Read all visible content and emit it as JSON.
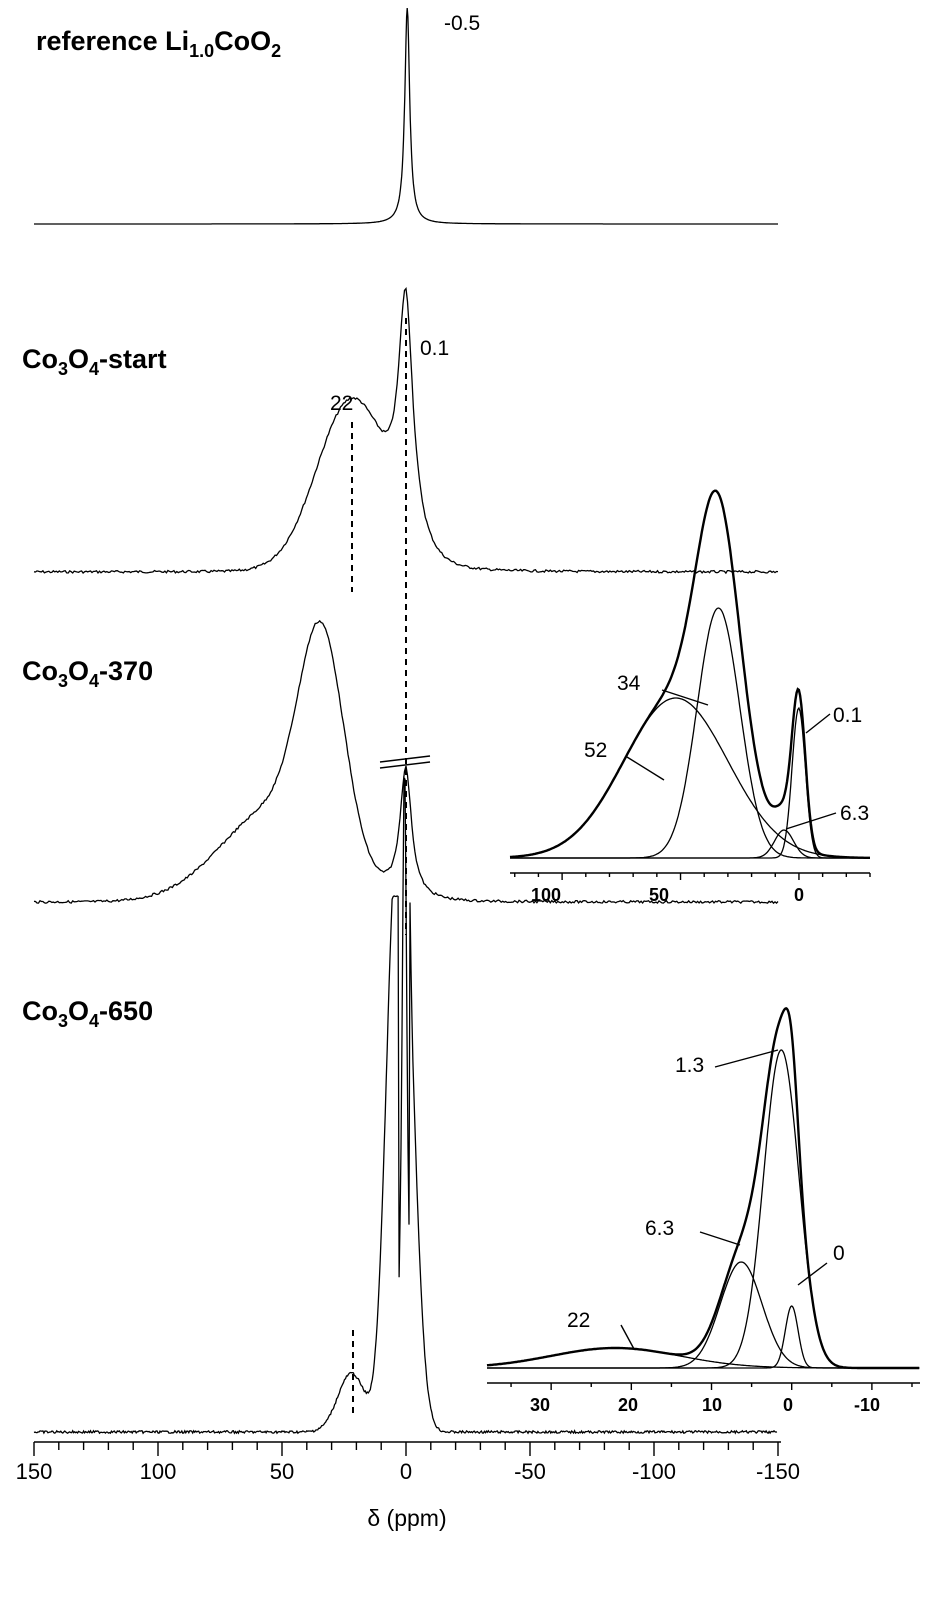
{
  "chart_data": {
    "type": "line",
    "xlabel": "δ (ppm)",
    "xlim": [
      150,
      -150
    ],
    "x_ticks": [
      "150",
      "100",
      "50",
      "0",
      "-50",
      "-100",
      "-150"
    ],
    "x_tick_values": [
      150,
      100,
      50,
      0,
      -50,
      -100,
      -150
    ],
    "series": [
      {
        "name": "reference Li1.0CoO2",
        "label_main": "reference Li",
        "label_sub": "1.0",
        "label_tail": "CoO",
        "label_sub2": "2",
        "peaks": [
          {
            "position": -0.5,
            "width": 1.2,
            "height": 1.0
          }
        ],
        "annotations": [
          "-0.5"
        ]
      },
      {
        "name": "Co3O4-start",
        "label_a": "Co",
        "label_s1": "3",
        "label_b": "O",
        "label_s2": "4",
        "label_c": "-start",
        "peaks": [
          {
            "position": 0.1,
            "width": 3.5,
            "height": 0.78
          },
          {
            "position": 22,
            "width": 14,
            "height": 0.56
          }
        ],
        "annotations": [
          "22",
          "0.1"
        ]
      },
      {
        "name": "Co3O4-370",
        "label_a": "Co",
        "label_s1": "3",
        "label_b": "O",
        "label_s2": "4",
        "label_c": "-370",
        "peaks": [
          {
            "position": 0.1,
            "width": 2.8,
            "height": 0.38
          },
          {
            "position": 34,
            "width": 9,
            "height": 0.62
          },
          {
            "position": 52,
            "width": 22,
            "height": 0.28
          }
        ],
        "annotations": []
      },
      {
        "name": "Co3O4-650",
        "label_a": "Co",
        "label_s1": "3",
        "label_b": "O",
        "label_s2": "4",
        "label_c": "-650",
        "peaks": [
          {
            "position": 1.3,
            "width": 4.5,
            "height": 2.6
          },
          {
            "position": 6.3,
            "width": 3.5,
            "height": 0.9
          },
          {
            "position": 0,
            "width": 1.0,
            "height": 1.2
          },
          {
            "position": 22,
            "width": 5.5,
            "height": 0.28
          }
        ],
        "annotations": []
      }
    ],
    "insets": [
      {
        "parent": "Co3O4-370",
        "x_ticks": [
          "100",
          "50",
          "0"
        ],
        "x_tick_values": [
          100,
          50,
          0
        ],
        "xlim": [
          122,
          -30
        ],
        "components": [
          {
            "position": 34,
            "width": 9
          },
          {
            "position": 52,
            "width": 22
          },
          {
            "position": 0.1,
            "width": 2.8
          },
          {
            "position": 6.3,
            "width": 4
          }
        ],
        "annotations": [
          "34",
          "52",
          "0.1",
          "6.3"
        ]
      },
      {
        "parent": "Co3O4-650",
        "x_ticks": [
          "30",
          "20",
          "10",
          "0",
          "-10"
        ],
        "x_tick_values": [
          30,
          20,
          10,
          0,
          -10
        ],
        "xlim": [
          38,
          -16
        ],
        "components": [
          {
            "position": 1.3,
            "width": 2.2
          },
          {
            "position": 6.3,
            "width": 2.6
          },
          {
            "position": 0,
            "width": 0.8
          },
          {
            "position": 22,
            "width": 8
          }
        ],
        "annotations": [
          "1.3",
          "6.3",
          "0",
          "22"
        ]
      }
    ]
  }
}
